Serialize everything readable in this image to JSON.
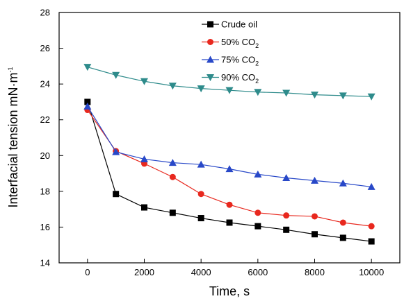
{
  "chart_data": {
    "type": "line",
    "xlabel": "Time, s",
    "ylabel_main": "Interfacial tension mN·m",
    "ylabel_sup": "-1",
    "xlim": [
      -1000,
      11000
    ],
    "ylim": [
      14,
      28
    ],
    "x_ticks": [
      0,
      2000,
      4000,
      6000,
      8000,
      10000
    ],
    "y_ticks": [
      14,
      16,
      18,
      20,
      22,
      24,
      26,
      28
    ],
    "x_tick_labels": [
      "0",
      "2000",
      "4000",
      "6000",
      "8000",
      "10000"
    ],
    "y_tick_labels": [
      "14",
      "16",
      "18",
      "20",
      "22",
      "24",
      "26",
      "28"
    ],
    "legend_position": "top-center",
    "series": [
      {
        "name": "Crude oil",
        "name_main": "Crude oil",
        "name_sub": "",
        "color": "#000000",
        "marker": "square",
        "x": [
          0,
          1000,
          2000,
          3000,
          4000,
          5000,
          6000,
          7000,
          8000,
          9000,
          10000
        ],
        "values": [
          23.0,
          17.85,
          17.1,
          16.8,
          16.5,
          16.25,
          16.05,
          15.85,
          15.6,
          15.4,
          15.2
        ]
      },
      {
        "name": "50% CO2",
        "name_main": "50% CO",
        "name_sub": "2",
        "color": "#e8281e",
        "marker": "circle",
        "x": [
          0,
          1000,
          2000,
          3000,
          4000,
          5000,
          6000,
          7000,
          8000,
          9000,
          10000
        ],
        "values": [
          22.55,
          20.25,
          19.55,
          18.8,
          17.85,
          17.25,
          16.8,
          16.65,
          16.6,
          16.25,
          16.05
        ]
      },
      {
        "name": "75% CO2",
        "name_main": "75% CO",
        "name_sub": "2",
        "color": "#2848c8",
        "marker": "triangle-up",
        "x": [
          0,
          1000,
          2000,
          3000,
          4000,
          5000,
          6000,
          7000,
          8000,
          9000,
          10000
        ],
        "values": [
          22.75,
          20.2,
          19.8,
          19.6,
          19.5,
          19.25,
          18.95,
          18.75,
          18.6,
          18.45,
          18.25
        ]
      },
      {
        "name": "90% CO2",
        "name_main": "90% CO",
        "name_sub": "2",
        "color": "#2e8b8b",
        "marker": "triangle-down",
        "x": [
          0,
          1000,
          2000,
          3000,
          4000,
          5000,
          6000,
          7000,
          8000,
          9000,
          10000
        ],
        "values": [
          24.95,
          24.5,
          24.15,
          23.9,
          23.75,
          23.65,
          23.55,
          23.5,
          23.4,
          23.35,
          23.3
        ]
      }
    ]
  }
}
